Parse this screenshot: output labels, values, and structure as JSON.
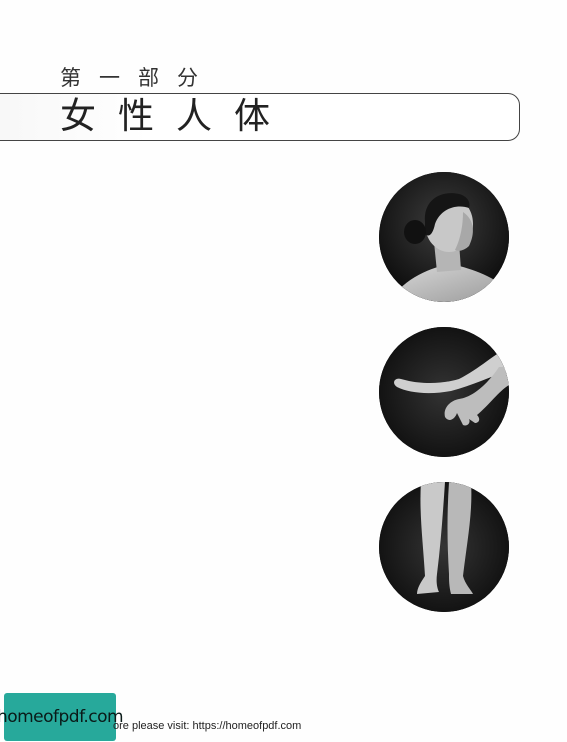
{
  "header": {
    "part_label": "第一部分",
    "title": "女性人体"
  },
  "photos": [
    {
      "subject": "woman head and shoulders profile"
    },
    {
      "subject": "hands"
    },
    {
      "subject": "lower legs and feet"
    }
  ],
  "footer": {
    "logo_text": "homeofpdf.com",
    "link_text": "ore please visit: https://homeofpdf.com"
  }
}
